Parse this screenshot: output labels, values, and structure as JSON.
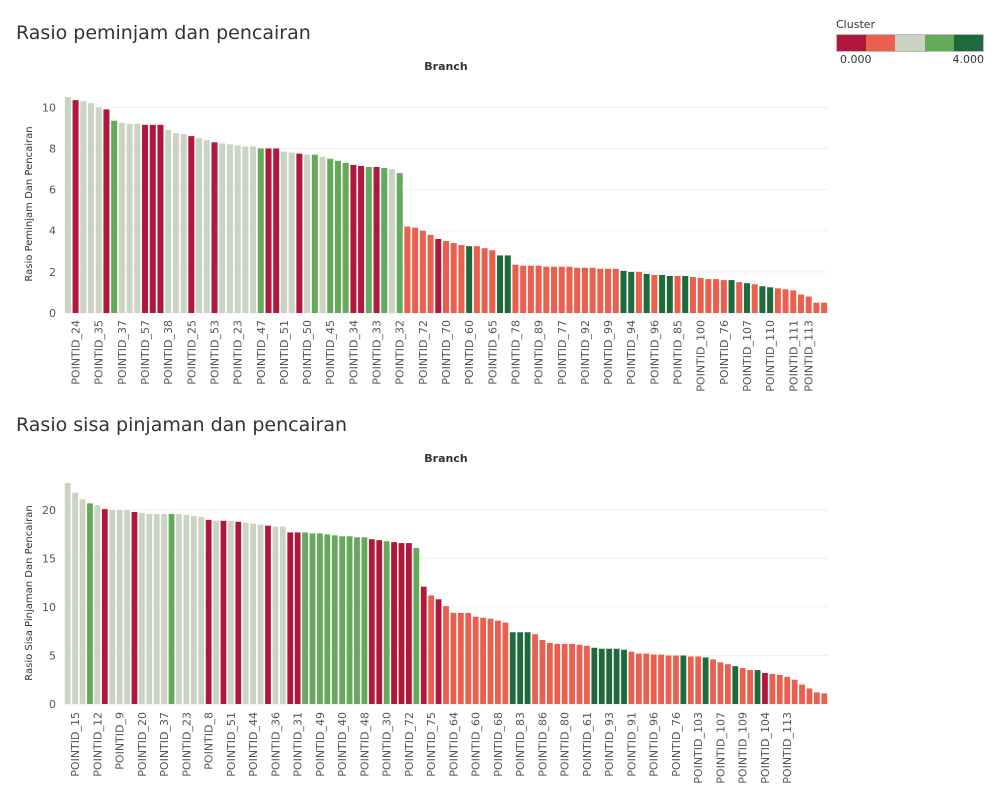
{
  "colors": {
    "cluster0": "#b0173a",
    "cluster1": "#ea5f4d",
    "cluster2": "#cbd4c2",
    "cluster3": "#65a95b",
    "cluster4": "#1f6a3c"
  },
  "legend": {
    "title": "Cluster",
    "min_label": "0.000",
    "max_label": "4.000"
  },
  "chart_data": [
    {
      "type": "bar",
      "title": "Rasio peminjam dan pencairan",
      "column_header": "Branch",
      "ylabel": "Rasio Peminjam Dan Pencairan",
      "ylim": [
        0,
        10.6
      ],
      "yticks": [
        0,
        2,
        4,
        6,
        8,
        10
      ],
      "values": [
        10.5,
        10.35,
        10.3,
        10.2,
        10.0,
        9.9,
        9.35,
        9.25,
        9.2,
        9.2,
        9.15,
        9.15,
        9.15,
        8.9,
        8.75,
        8.7,
        8.6,
        8.5,
        8.4,
        8.3,
        8.25,
        8.2,
        8.15,
        8.1,
        8.1,
        8.0,
        8.0,
        8.0,
        7.85,
        7.8,
        7.75,
        7.7,
        7.7,
        7.6,
        7.5,
        7.4,
        7.3,
        7.2,
        7.15,
        7.1,
        7.1,
        7.05,
        7.0,
        6.8,
        4.2,
        4.15,
        4.0,
        3.8,
        3.6,
        3.5,
        3.4,
        3.3,
        3.25,
        3.25,
        3.15,
        3.05,
        2.8,
        2.8,
        2.35,
        2.3,
        2.3,
        2.3,
        2.25,
        2.25,
        2.25,
        2.25,
        2.2,
        2.2,
        2.2,
        2.15,
        2.15,
        2.15,
        2.05,
        2.0,
        2.0,
        1.9,
        1.85,
        1.85,
        1.8,
        1.8,
        1.8,
        1.75,
        1.7,
        1.65,
        1.65,
        1.6,
        1.6,
        1.5,
        1.45,
        1.4,
        1.3,
        1.25,
        1.2,
        1.15,
        1.1,
        0.9,
        0.8,
        0.5,
        0.5
      ],
      "clusters": [
        2,
        0,
        2,
        2,
        2,
        0,
        3,
        2,
        2,
        2,
        0,
        0,
        0,
        2,
        2,
        2,
        0,
        2,
        2,
        0,
        2,
        2,
        2,
        2,
        2,
        3,
        0,
        0,
        2,
        2,
        0,
        2,
        3,
        2,
        3,
        3,
        3,
        0,
        0,
        3,
        0,
        3,
        2,
        3,
        1,
        1,
        1,
        1,
        0,
        1,
        1,
        1,
        4,
        1,
        1,
        1,
        4,
        4,
        1,
        1,
        1,
        1,
        1,
        1,
        1,
        1,
        1,
        1,
        1,
        1,
        1,
        1,
        4,
        4,
        1,
        4,
        1,
        4,
        4,
        1,
        4,
        1,
        1,
        1,
        1,
        1,
        4,
        1,
        4,
        1,
        4,
        4,
        1,
        1,
        1,
        1,
        1,
        1,
        1
      ],
      "tick_labels": [
        {
          "label": "POINTID_24",
          "index": 1
        },
        {
          "label": "POINTID_35",
          "index": 4
        },
        {
          "label": "POINTID_37",
          "index": 7
        },
        {
          "label": "POINTID_57",
          "index": 10
        },
        {
          "label": "POINTID_38",
          "index": 13
        },
        {
          "label": "POINTID_25",
          "index": 16
        },
        {
          "label": "POINTID_53",
          "index": 19
        },
        {
          "label": "POINTID_23",
          "index": 22
        },
        {
          "label": "POINTID_47",
          "index": 25
        },
        {
          "label": "POINTID_51",
          "index": 28
        },
        {
          "label": "POINTID_50",
          "index": 31
        },
        {
          "label": "POINTID_45",
          "index": 34
        },
        {
          "label": "POINTID_34",
          "index": 37
        },
        {
          "label": "POINTID_33",
          "index": 40
        },
        {
          "label": "POINTID_32",
          "index": 43
        },
        {
          "label": "POINTID_72",
          "index": 46
        },
        {
          "label": "POINTID_70",
          "index": 49
        },
        {
          "label": "POINTID_60",
          "index": 52
        },
        {
          "label": "POINTID_65",
          "index": 55
        },
        {
          "label": "POINTID_78",
          "index": 58
        },
        {
          "label": "POINTID_89",
          "index": 61
        },
        {
          "label": "POINTID_77",
          "index": 64
        },
        {
          "label": "POINTID_92",
          "index": 67
        },
        {
          "label": "POINTID_99",
          "index": 70
        },
        {
          "label": "POINTID_94",
          "index": 73
        },
        {
          "label": "POINTID_96",
          "index": 76
        },
        {
          "label": "POINTID_85",
          "index": 79
        },
        {
          "label": "POINTID_100",
          "index": 82
        },
        {
          "label": "POINTID_76",
          "index": 85
        },
        {
          "label": "POINTID_107",
          "index": 88
        },
        {
          "label": "POINTID_110",
          "index": 91
        },
        {
          "label": "POINTID_111",
          "index": 94
        },
        {
          "label": "POINTID_113",
          "index": 96
        }
      ]
    },
    {
      "type": "bar",
      "title": "Rasio sisa pinjaman dan pencairan",
      "column_header": "Branch",
      "ylabel": "Rasio Sisa Pinjaman Dan Pencairan",
      "ylim": [
        0,
        22.9
      ],
      "yticks": [
        0,
        5,
        10,
        15,
        20
      ],
      "values": [
        22.8,
        21.8,
        21.1,
        20.7,
        20.5,
        20.1,
        20.0,
        20.0,
        20.0,
        19.8,
        19.7,
        19.6,
        19.6,
        19.6,
        19.6,
        19.6,
        19.5,
        19.4,
        19.3,
        19.0,
        18.9,
        18.9,
        18.9,
        18.8,
        18.7,
        18.6,
        18.5,
        18.4,
        18.3,
        18.3,
        17.7,
        17.7,
        17.7,
        17.6,
        17.6,
        17.5,
        17.4,
        17.3,
        17.3,
        17.2,
        17.2,
        17.0,
        16.9,
        16.8,
        16.7,
        16.6,
        16.6,
        16.1,
        12.1,
        11.2,
        10.8,
        10.1,
        9.4,
        9.4,
        9.4,
        9.0,
        8.9,
        8.8,
        8.6,
        8.4,
        7.4,
        7.4,
        7.4,
        7.2,
        6.6,
        6.3,
        6.2,
        6.2,
        6.2,
        6.1,
        6.0,
        5.8,
        5.7,
        5.7,
        5.7,
        5.6,
        5.4,
        5.2,
        5.2,
        5.1,
        5.1,
        5.0,
        5.0,
        5.0,
        4.9,
        4.9,
        4.8,
        4.6,
        4.3,
        4.1,
        3.9,
        3.7,
        3.5,
        3.5,
        3.2,
        3.1,
        3.0,
        2.8,
        2.5,
        2.0,
        1.6,
        1.2,
        1.1
      ],
      "clusters": [
        2,
        2,
        2,
        3,
        2,
        0,
        2,
        2,
        2,
        0,
        2,
        2,
        2,
        2,
        3,
        2,
        2,
        2,
        2,
        0,
        2,
        0,
        2,
        0,
        2,
        2,
        2,
        0,
        2,
        2,
        0,
        0,
        3,
        3,
        3,
        3,
        3,
        3,
        3,
        3,
        3,
        0,
        0,
        3,
        0,
        0,
        0,
        3,
        0,
        1,
        0,
        1,
        1,
        1,
        1,
        1,
        1,
        1,
        1,
        1,
        4,
        4,
        4,
        1,
        1,
        1,
        1,
        1,
        1,
        1,
        1,
        4,
        4,
        4,
        4,
        4,
        1,
        1,
        1,
        1,
        1,
        1,
        1,
        4,
        1,
        1,
        4,
        1,
        1,
        1,
        4,
        1,
        1,
        4,
        0,
        1,
        1,
        1,
        1,
        1,
        1,
        1,
        1
      ],
      "tick_labels": [
        {
          "label": "POINTID_15",
          "index": 1
        },
        {
          "label": "POINTID_12",
          "index": 4
        },
        {
          "label": "POINTID_9",
          "index": 7
        },
        {
          "label": "POINTID_20",
          "index": 10
        },
        {
          "label": "POINTID_37",
          "index": 13
        },
        {
          "label": "POINTID_23",
          "index": 16
        },
        {
          "label": "POINTID_8",
          "index": 19
        },
        {
          "label": "POINTID_51",
          "index": 22
        },
        {
          "label": "POINTID_44",
          "index": 25
        },
        {
          "label": "POINTID_36",
          "index": 28
        },
        {
          "label": "POINTID_31",
          "index": 31
        },
        {
          "label": "POINTID_49",
          "index": 34
        },
        {
          "label": "POINTID_40",
          "index": 37
        },
        {
          "label": "POINTID_48",
          "index": 40
        },
        {
          "label": "POINTID_30",
          "index": 43
        },
        {
          "label": "POINTID_72",
          "index": 46
        },
        {
          "label": "POINTID_75",
          "index": 49
        },
        {
          "label": "POINTID_64",
          "index": 52
        },
        {
          "label": "POINTID_60",
          "index": 55
        },
        {
          "label": "POINTID_68",
          "index": 58
        },
        {
          "label": "POINTID_83",
          "index": 61
        },
        {
          "label": "POINTID_86",
          "index": 64
        },
        {
          "label": "POINTID_80",
          "index": 67
        },
        {
          "label": "POINTID_61",
          "index": 70
        },
        {
          "label": "POINTID_93",
          "index": 73
        },
        {
          "label": "POINTID_91",
          "index": 76
        },
        {
          "label": "POINTID_96",
          "index": 79
        },
        {
          "label": "POINTID_76",
          "index": 82
        },
        {
          "label": "POINTID_103",
          "index": 85
        },
        {
          "label": "POINTID_107",
          "index": 88
        },
        {
          "label": "POINTID_109",
          "index": 91
        },
        {
          "label": "POINTID_104",
          "index": 94
        },
        {
          "label": "POINTID_113",
          "index": 97
        }
      ]
    }
  ]
}
